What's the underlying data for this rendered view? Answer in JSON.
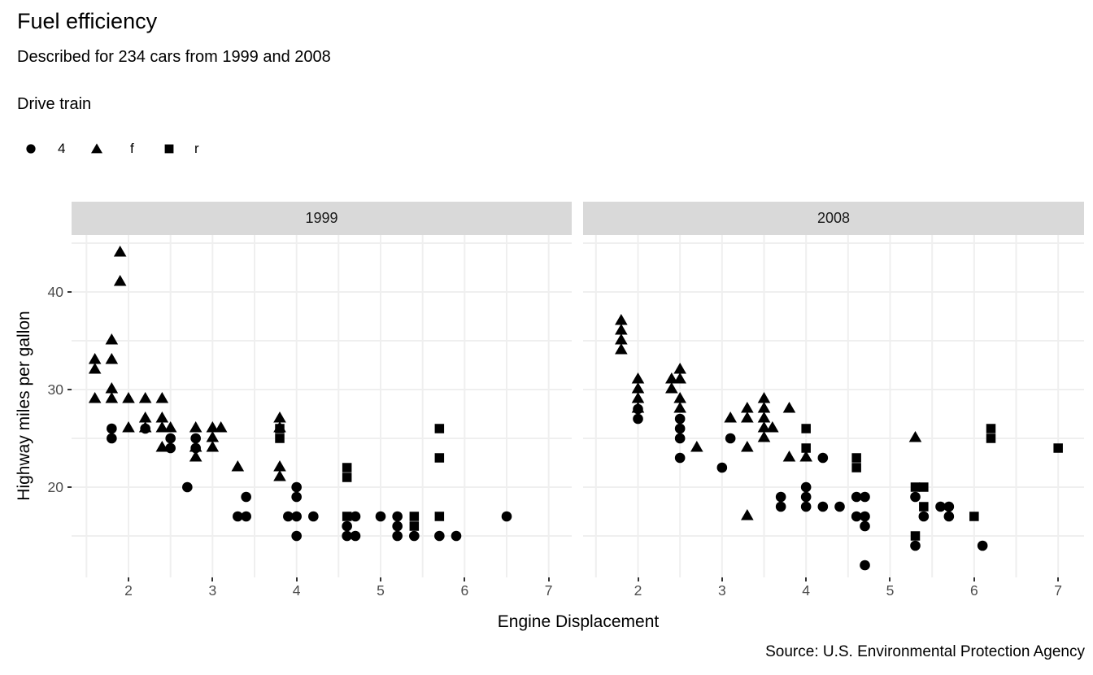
{
  "title": "Fuel efficiency",
  "subtitle": "Described for 234 cars from 1999 and 2008",
  "caption": "Source: U.S. Environmental Protection Agency",
  "legend": {
    "title": "Drive train",
    "items": [
      {
        "shape": "circle",
        "label": "4"
      },
      {
        "shape": "triangle",
        "label": "f"
      },
      {
        "shape": "square",
        "label": "r"
      }
    ]
  },
  "axes": {
    "x_label": "Engine Displacement",
    "y_label": "Highway miles per gallon",
    "x_ticks": [
      2,
      3,
      4,
      5,
      6,
      7
    ],
    "y_ticks": [
      20,
      30,
      40
    ],
    "x_range": [
      1.33,
      7.3
    ],
    "y_range": [
      10.8,
      45.8
    ],
    "grid": true
  },
  "colors": {
    "point": "#000000",
    "strip_bg": "#d9d9d9",
    "grid": "#efefef",
    "axis_text": "#4d4d4d",
    "tick_mark": "#333333"
  },
  "chart_data": {
    "type": "scatter",
    "title": "Fuel efficiency",
    "subtitle": "Described for 234 cars from 1999 and 2008",
    "xlabel": "Engine Displacement",
    "ylabel": "Highway miles per gallon",
    "legend_title": "Drive train",
    "legend_position": "top-left",
    "facets": [
      {
        "label": "1999",
        "series": [
          {
            "name": "4",
            "shape": "circle",
            "points": [
              [
                1.8,
                26
              ],
              [
                1.8,
                25
              ],
              [
                2.2,
                26
              ],
              [
                2.5,
                25
              ],
              [
                2.5,
                24
              ],
              [
                2.7,
                20
              ],
              [
                2.8,
                25
              ],
              [
                2.8,
                24
              ],
              [
                3.3,
                17
              ],
              [
                3.4,
                19
              ],
              [
                3.4,
                17
              ],
              [
                3.9,
                17
              ],
              [
                4.0,
                20
              ],
              [
                4.0,
                19
              ],
              [
                4.0,
                17
              ],
              [
                4.0,
                15
              ],
              [
                4.2,
                17
              ],
              [
                4.6,
                16
              ],
              [
                4.6,
                15
              ],
              [
                4.7,
                17
              ],
              [
                4.7,
                15
              ],
              [
                5.0,
                17
              ],
              [
                5.2,
                17
              ],
              [
                5.2,
                16
              ],
              [
                5.2,
                15
              ],
              [
                5.4,
                15
              ],
              [
                5.7,
                15
              ],
              [
                5.9,
                15
              ],
              [
                6.5,
                17
              ]
            ]
          },
          {
            "name": "f",
            "shape": "triangle",
            "points": [
              [
                1.6,
                33
              ],
              [
                1.6,
                32
              ],
              [
                1.6,
                29
              ],
              [
                1.8,
                35
              ],
              [
                1.8,
                33
              ],
              [
                1.8,
                30
              ],
              [
                1.8,
                29
              ],
              [
                1.9,
                44
              ],
              [
                1.9,
                41
              ],
              [
                2.0,
                29
              ],
              [
                2.0,
                26
              ],
              [
                2.2,
                29
              ],
              [
                2.2,
                27
              ],
              [
                2.2,
                26
              ],
              [
                2.4,
                29
              ],
              [
                2.4,
                27
              ],
              [
                2.4,
                26
              ],
              [
                2.4,
                24
              ],
              [
                2.5,
                26
              ],
              [
                2.8,
                26
              ],
              [
                2.8,
                24
              ],
              [
                2.8,
                23
              ],
              [
                3.0,
                26
              ],
              [
                3.0,
                25
              ],
              [
                3.0,
                24
              ],
              [
                3.1,
                26
              ],
              [
                3.3,
                22
              ],
              [
                3.8,
                27
              ],
              [
                3.8,
                26
              ],
              [
                3.8,
                22
              ],
              [
                3.8,
                21
              ]
            ]
          },
          {
            "name": "r",
            "shape": "square",
            "points": [
              [
                3.8,
                26
              ],
              [
                3.8,
                25
              ],
              [
                4.6,
                22
              ],
              [
                4.6,
                21
              ],
              [
                4.6,
                17
              ],
              [
                5.4,
                17
              ],
              [
                5.4,
                16
              ],
              [
                5.7,
                26
              ],
              [
                5.7,
                23
              ],
              [
                5.7,
                17
              ]
            ]
          }
        ]
      },
      {
        "label": "2008",
        "series": [
          {
            "name": "4",
            "shape": "circle",
            "points": [
              [
                2.0,
                28
              ],
              [
                2.0,
                27
              ],
              [
                2.5,
                27
              ],
              [
                2.5,
                26
              ],
              [
                2.5,
                25
              ],
              [
                2.5,
                23
              ],
              [
                3.0,
                22
              ],
              [
                3.1,
                25
              ],
              [
                3.7,
                19
              ],
              [
                3.7,
                18
              ],
              [
                4.0,
                20
              ],
              [
                4.0,
                19
              ],
              [
                4.0,
                18
              ],
              [
                4.2,
                23
              ],
              [
                4.2,
                18
              ],
              [
                4.4,
                18
              ],
              [
                4.6,
                19
              ],
              [
                4.6,
                17
              ],
              [
                4.7,
                19
              ],
              [
                4.7,
                17
              ],
              [
                4.7,
                16
              ],
              [
                4.7,
                12
              ],
              [
                5.3,
                19
              ],
              [
                5.3,
                14
              ],
              [
                5.4,
                17
              ],
              [
                5.6,
                18
              ],
              [
                5.7,
                18
              ],
              [
                5.7,
                17
              ],
              [
                6.1,
                14
              ]
            ]
          },
          {
            "name": "f",
            "shape": "triangle",
            "points": [
              [
                1.8,
                37
              ],
              [
                1.8,
                36
              ],
              [
                1.8,
                35
              ],
              [
                1.8,
                34
              ],
              [
                2.0,
                31
              ],
              [
                2.0,
                30
              ],
              [
                2.0,
                29
              ],
              [
                2.0,
                28
              ],
              [
                2.4,
                31
              ],
              [
                2.4,
                30
              ],
              [
                2.5,
                32
              ],
              [
                2.5,
                31
              ],
              [
                2.5,
                29
              ],
              [
                2.5,
                28
              ],
              [
                2.7,
                24
              ],
              [
                3.1,
                27
              ],
              [
                3.3,
                28
              ],
              [
                3.3,
                27
              ],
              [
                3.3,
                24
              ],
              [
                3.3,
                17
              ],
              [
                3.5,
                29
              ],
              [
                3.5,
                28
              ],
              [
                3.5,
                27
              ],
              [
                3.5,
                26
              ],
              [
                3.5,
                25
              ],
              [
                3.6,
                26
              ],
              [
                3.8,
                28
              ],
              [
                3.8,
                23
              ],
              [
                4.0,
                23
              ],
              [
                5.3,
                25
              ]
            ]
          },
          {
            "name": "r",
            "shape": "square",
            "points": [
              [
                4.0,
                26
              ],
              [
                4.0,
                24
              ],
              [
                4.6,
                23
              ],
              [
                4.6,
                22
              ],
              [
                5.3,
                20
              ],
              [
                5.4,
                20
              ],
              [
                5.4,
                18
              ],
              [
                5.3,
                15
              ],
              [
                6.0,
                17
              ],
              [
                6.2,
                26
              ],
              [
                6.2,
                25
              ],
              [
                7.0,
                24
              ]
            ]
          }
        ]
      }
    ]
  }
}
